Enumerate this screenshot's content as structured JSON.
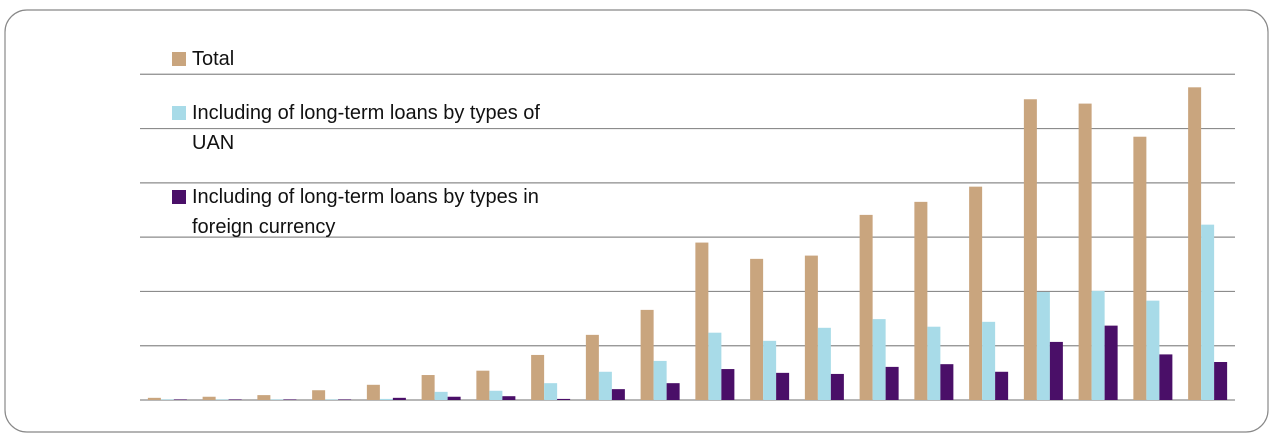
{
  "chart_data": {
    "type": "bar",
    "categories": [
      null,
      null,
      null,
      null,
      null,
      null,
      null,
      null,
      null,
      null,
      null,
      null,
      null,
      null,
      null,
      null,
      null,
      null,
      null,
      null
    ],
    "series": [
      {
        "name": "Total",
        "color": "#c9a57e",
        "values": [
          0.04,
          0.06,
          0.09,
          0.18,
          0.28,
          0.46,
          0.54,
          0.83,
          1.2,
          1.66,
          2.9,
          2.6,
          2.66,
          3.41,
          3.65,
          3.93,
          5.54,
          5.46,
          4.85,
          5.76
        ]
      },
      {
        "name": "Including of long-term loans by types of UAN",
        "color": "#a8dbe8",
        "values": [
          0.01,
          0.01,
          0.01,
          0.01,
          0.02,
          0.15,
          0.17,
          0.31,
          0.52,
          0.72,
          1.24,
          1.09,
          1.33,
          1.49,
          1.35,
          1.44,
          1.99,
          2.01,
          1.83,
          3.23
        ]
      },
      {
        "name": "Including of long-term loans by types in foreign currency",
        "color": "#4a0f68",
        "values": [
          0.01,
          0.01,
          0.01,
          0.01,
          0.04,
          0.06,
          0.07,
          0.02,
          0.2,
          0.31,
          0.57,
          0.5,
          0.48,
          0.61,
          0.66,
          0.52,
          1.07,
          1.37,
          0.84,
          0.7
        ]
      }
    ],
    "ylim": [
      0,
      7
    ],
    "yticks": [
      0,
      1,
      2,
      3,
      4,
      5,
      6
    ],
    "grid": true
  }
}
